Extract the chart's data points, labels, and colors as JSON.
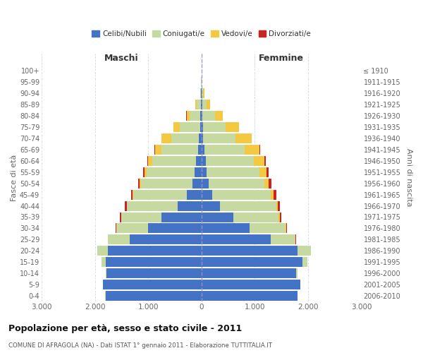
{
  "age_groups": [
    "0-4",
    "5-9",
    "10-14",
    "15-19",
    "20-24",
    "25-29",
    "30-34",
    "35-39",
    "40-44",
    "45-49",
    "50-54",
    "55-59",
    "60-64",
    "65-69",
    "70-74",
    "75-79",
    "80-84",
    "85-89",
    "90-94",
    "95-99",
    "100+"
  ],
  "birth_years": [
    "2006-2010",
    "2001-2005",
    "1996-2000",
    "1991-1995",
    "1986-1990",
    "1981-1985",
    "1976-1980",
    "1971-1975",
    "1966-1970",
    "1961-1965",
    "1956-1960",
    "1951-1955",
    "1946-1950",
    "1941-1945",
    "1936-1940",
    "1931-1935",
    "1926-1930",
    "1921-1925",
    "1916-1920",
    "1911-1915",
    "≤ 1910"
  ],
  "male": {
    "celibi": [
      1800,
      1850,
      1780,
      1800,
      1750,
      1350,
      1000,
      750,
      450,
      280,
      170,
      130,
      100,
      70,
      50,
      30,
      20,
      10,
      5,
      2,
      2
    ],
    "coniugati": [
      5,
      5,
      20,
      70,
      200,
      400,
      600,
      750,
      950,
      1000,
      970,
      900,
      820,
      680,
      520,
      380,
      200,
      80,
      20,
      5,
      2
    ],
    "vedovi": [
      0,
      0,
      0,
      0,
      2,
      2,
      2,
      5,
      5,
      10,
      20,
      40,
      80,
      120,
      180,
      120,
      60,
      20,
      5,
      0,
      0
    ],
    "divorziati": [
      0,
      0,
      0,
      0,
      2,
      5,
      10,
      20,
      30,
      30,
      30,
      30,
      20,
      10,
      5,
      2,
      2,
      2,
      0,
      0,
      0
    ]
  },
  "female": {
    "nubili": [
      1800,
      1850,
      1780,
      1900,
      1800,
      1300,
      900,
      600,
      350,
      200,
      130,
      100,
      80,
      55,
      35,
      25,
      20,
      10,
      5,
      2,
      2
    ],
    "coniugate": [
      5,
      5,
      20,
      80,
      250,
      460,
      680,
      850,
      1050,
      1100,
      1050,
      990,
      900,
      750,
      600,
      430,
      230,
      90,
      30,
      5,
      2
    ],
    "vedove": [
      0,
      0,
      0,
      0,
      3,
      5,
      8,
      15,
      25,
      50,
      80,
      130,
      200,
      280,
      300,
      250,
      150,
      60,
      20,
      2,
      0
    ],
    "divorziate": [
      0,
      0,
      0,
      0,
      2,
      5,
      15,
      30,
      50,
      50,
      50,
      40,
      30,
      15,
      5,
      2,
      2,
      2,
      0,
      0,
      0
    ]
  },
  "colors": {
    "celibi": "#4472c4",
    "coniugati": "#c5d9a0",
    "vedovi": "#f5c842",
    "divorziati": "#cc2222"
  },
  "xlim": 3000,
  "title": "Popolazione per età, sesso e stato civile - 2011",
  "subtitle": "COMUNE DI AFRAGOLA (NA) - Dati ISTAT 1° gennaio 2011 - Elaborazione TUTTITALIA.IT",
  "ylabel_left": "Fasce di età",
  "ylabel_right": "Anni di nascita",
  "legend_labels": [
    "Celibi/Nubili",
    "Coniugati/e",
    "Vedovi/e",
    "Divorziati/e"
  ],
  "maschi_label": "Maschi",
  "femmine_label": "Femmine",
  "background_color": "#ffffff",
  "grid_color": "#cccccc"
}
